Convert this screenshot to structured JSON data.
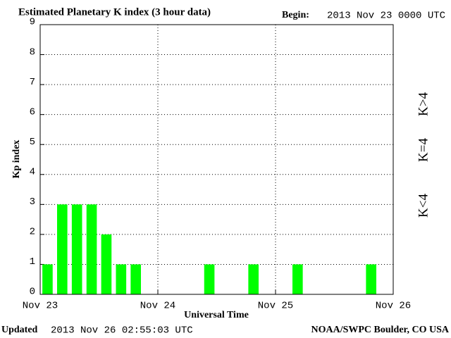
{
  "chart_data": {
    "type": "bar",
    "title": "Estimated Planetary K index (3 hour data)",
    "begin_label": "Begin:",
    "begin_value": "2013 Nov 23 0000 UTC",
    "ylabel": "Kp index",
    "xlabel": "Universal Time",
    "updated_label": "Updated",
    "updated_value": "2013 Nov 26 02:55:03 UTC",
    "credit": "NOAA/SWPC Boulder, CO USA",
    "bar_width": 3,
    "x": [
      0,
      3,
      6,
      9,
      12,
      15,
      18,
      33,
      42,
      51,
      66
    ],
    "values": [
      1,
      3,
      3,
      3,
      2,
      1,
      1,
      1,
      1,
      1,
      1
    ],
    "color": "#00ff00",
    "xlim": [
      0,
      72
    ],
    "xticks": [
      {
        "value": 0,
        "label": "Nov 23"
      },
      {
        "value": 24,
        "label": "Nov 24"
      },
      {
        "value": 48,
        "label": "Nov 25"
      },
      {
        "value": 72,
        "label": "Nov 26"
      }
    ],
    "ylim": [
      0,
      9
    ],
    "yticks": [
      0,
      1,
      2,
      3,
      4,
      5,
      6,
      7,
      8,
      9
    ],
    "grid": true,
    "legend": [
      {
        "label": "K>4",
        "color": "#ff2a00"
      },
      {
        "label": "K=4",
        "color": "#ffcc00"
      },
      {
        "label": "K<4",
        "color": "#22dd22"
      }
    ]
  }
}
